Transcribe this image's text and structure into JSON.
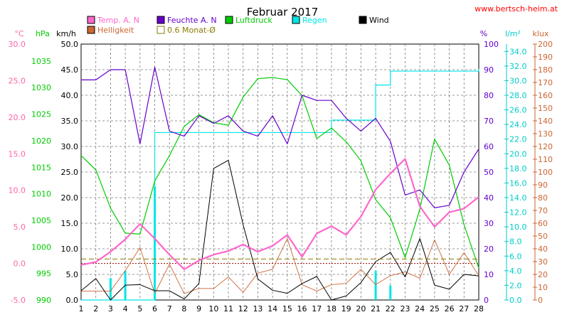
{
  "chart_data": {
    "type": "line",
    "title": "Februar 2017",
    "source": "www.bertsch-heim.at",
    "x": [
      1,
      2,
      3,
      4,
      5,
      6,
      7,
      8,
      9,
      10,
      11,
      12,
      13,
      14,
      15,
      16,
      17,
      18,
      19,
      20,
      21,
      22,
      23,
      24,
      25,
      26,
      27,
      28
    ],
    "axes": [
      {
        "id": "temp",
        "label": "°C",
        "ylim": [
          -5,
          30
        ],
        "ticks": [
          "-5.0",
          "0.0",
          "5.0",
          "10.0",
          "15.0",
          "20.0",
          "25.0",
          "30.0"
        ],
        "color": "#ff66aa"
      },
      {
        "id": "pressure",
        "label": "hPa",
        "ylim": [
          990,
          1038.2
        ],
        "ticks": [
          "990",
          "995",
          "1000",
          "1005",
          "1010",
          "1015",
          "1020",
          "1025",
          "1030",
          "1035"
        ],
        "color": "#00cc00"
      },
      {
        "id": "wind",
        "label": "km/h",
        "ylim": [
          0,
          50
        ],
        "ticks": [
          "0.0",
          "5.0",
          "10.0",
          "15.0",
          "20.0",
          "25.0",
          "30.0",
          "35.0",
          "40.0",
          "45.0",
          "50.0"
        ],
        "color": "#000000"
      },
      {
        "id": "humidity",
        "label": "%",
        "ylim": [
          0,
          100
        ],
        "ticks": [
          "0",
          "10",
          "20",
          "30",
          "40",
          "50",
          "60",
          "70",
          "80",
          "90",
          "100"
        ],
        "color": "#6600cc"
      },
      {
        "id": "rain",
        "label": "l/m²",
        "ylim": [
          0,
          35
        ],
        "ticks": [
          "0.0",
          "2.0",
          "4.0",
          "6.0",
          "8.0",
          "10.0",
          "12.0",
          "14.0",
          "16.0",
          "18.0",
          "20.0",
          "22.0",
          "24.0",
          "26.0",
          "28.0",
          "30.0",
          "32.0",
          "34.0"
        ],
        "color": "#00cccc"
      },
      {
        "id": "light",
        "label": "klux",
        "ylim": [
          0,
          200
        ],
        "ticks": [
          "0",
          "10",
          "20",
          "30",
          "40",
          "50",
          "60",
          "70",
          "80",
          "90",
          "100",
          "110",
          "120",
          "130",
          "140",
          "150",
          "160",
          "170",
          "180",
          "190",
          "200"
        ],
        "color": "#cc6633"
      }
    ],
    "series": [
      {
        "name": "Temp. A. N",
        "axis": "temp",
        "color": "#ff66cc",
        "width": 2.2,
        "values": [
          -0.2,
          0.2,
          1.6,
          3.3,
          5.4,
          3.4,
          1.2,
          -0.8,
          0.4,
          1.2,
          1.7,
          2.6,
          1.6,
          2.4,
          3.9,
          0.9,
          4.1,
          5.1,
          3.9,
          6.4,
          10.1,
          12.3,
          14.3,
          7.8,
          5.0,
          7.0,
          7.5,
          9.1
        ]
      },
      {
        "name": "Feuchte A. N",
        "axis": "humidity",
        "color": "#6600cc",
        "width": 1.2,
        "values": [
          86,
          86,
          90,
          90,
          61,
          91,
          66,
          64,
          72,
          69,
          72,
          66,
          64,
          72,
          61,
          80,
          78,
          78,
          71,
          66,
          71,
          62,
          41,
          43,
          36,
          37,
          50,
          59
        ]
      },
      {
        "name": "Luftdruck",
        "axis": "pressure",
        "color": "#00cc00",
        "width": 1.2,
        "values": [
          1017.2,
          1014.5,
          1007.3,
          1002.6,
          1002.4,
          1012.4,
          1017.2,
          1022.7,
          1024.9,
          1023.4,
          1022.9,
          1028.2,
          1031.7,
          1031.9,
          1031.5,
          1028.5,
          1020.4,
          1022.4,
          1019.8,
          1016.2,
          1008.9,
          1005.5,
          998.0,
          1007.1,
          1020.3,
          1015.4,
          1004.2,
          996.0
        ]
      },
      {
        "name": "Regen",
        "axis": "rain",
        "color": "#00e5e5",
        "width": 1.2,
        "style": "step",
        "values": [
          0,
          0,
          0,
          0,
          0,
          22.9,
          22.9,
          22.9,
          22.9,
          22.9,
          22.9,
          22.9,
          22.9,
          22.9,
          22.9,
          22.9,
          22.9,
          24.6,
          24.6,
          24.6,
          29.4,
          31.3,
          31.3,
          31.3,
          31.3,
          31.3,
          31.3,
          31.6
        ]
      },
      {
        "name": "Wind",
        "axis": "wind",
        "color": "#000000",
        "width": 1.0,
        "values": [
          1.8,
          4.2,
          0,
          2.9,
          3.0,
          1.8,
          1.8,
          0.2,
          3.2,
          25.7,
          27.3,
          14.7,
          4.1,
          1.9,
          1.3,
          3.2,
          4.6,
          0,
          0.8,
          3.4,
          7.5,
          9.3,
          4.5,
          12.0,
          2.9,
          2.1,
          5.0,
          4.7
        ]
      },
      {
        "name": "Helligkeit",
        "axis": "light",
        "color": "#cc6633",
        "width": 0.9,
        "values": [
          7,
          7,
          7,
          23,
          41,
          5,
          28,
          5,
          9,
          9,
          18,
          6,
          21,
          24,
          48,
          12,
          7,
          12,
          13,
          24,
          12,
          19,
          22,
          17,
          47,
          20,
          37,
          19
        ]
      },
      {
        "name": "0.6 Monat-Ø",
        "axis": "temp",
        "color": "#8a7a00",
        "width": 1.0,
        "style": "dashed",
        "values": [
          0.6,
          0.6,
          0.6,
          0.6,
          0.6,
          0.6,
          0.6,
          0.6,
          0.6,
          0.6,
          0.6,
          0.6,
          0.6,
          0.6,
          0.6,
          0.6,
          0.6,
          0.6,
          0.6,
          0.6,
          0.6,
          0.6,
          0.6,
          0.6,
          0.6,
          0.6,
          0.6,
          0.6
        ]
      }
    ],
    "rain_bars": {
      "axis": "rain",
      "color": "#00e5e5",
      "x": [
        3,
        4,
        6,
        21,
        22
      ],
      "values": [
        3.0,
        4.0,
        15.5,
        4.0,
        2.0
      ]
    },
    "extra_lines": [
      {
        "axis": "temp",
        "value": 0.0,
        "color": "#990000",
        "style": "dotted"
      }
    ],
    "legend": [
      {
        "label": "Temp. A. N",
        "color": "#ff66cc"
      },
      {
        "label": "Feuchte A. N",
        "color": "#6600cc"
      },
      {
        "label": "Luftdruck",
        "color": "#00cc00"
      },
      {
        "label": "Regen",
        "color": "#00e5e5"
      },
      {
        "label": "Wind",
        "color": "#000000"
      },
      {
        "label": "Helligkeit",
        "color": "#cc6633"
      },
      {
        "label": "0.6 Monat-Ø",
        "color": "#8a7a00",
        "hollow": true
      }
    ],
    "grid": true
  }
}
